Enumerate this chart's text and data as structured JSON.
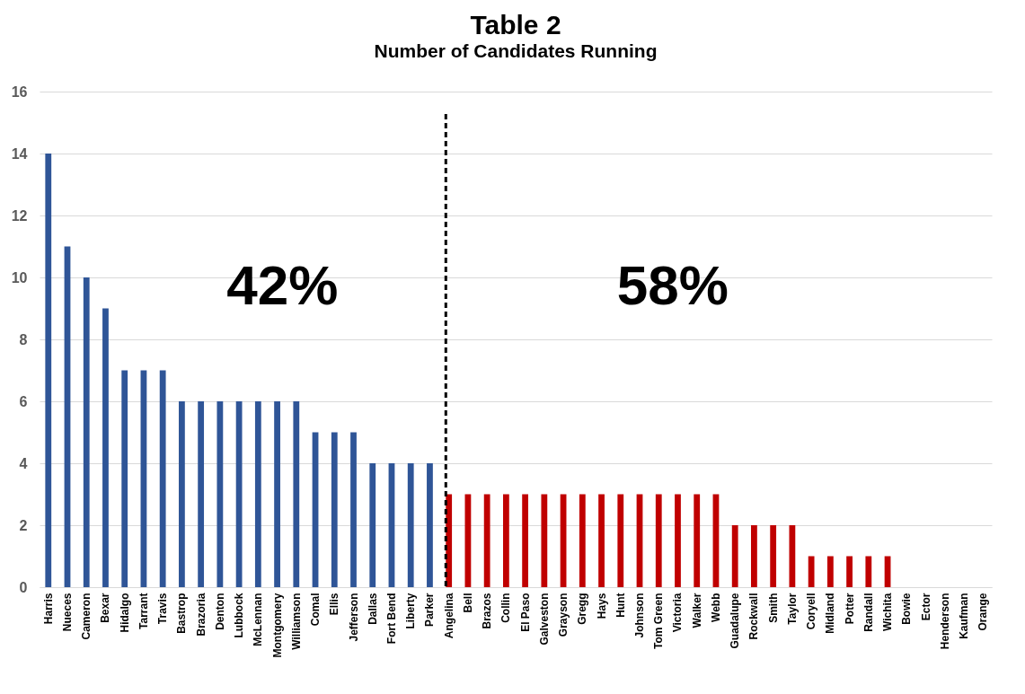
{
  "chart_data": {
    "type": "bar",
    "title": "Table 2",
    "subtitle": "Number of Candidates Running",
    "categories": [
      "Harris",
      "Nueces",
      "Cameron",
      "Bexar",
      "Hidalgo",
      "Tarrant",
      "Travis",
      "Bastrop",
      "Brazoria",
      "Denton",
      "Lubbock",
      "McLennan",
      "Montgomery",
      "Williamson",
      "Comal",
      "Ellis",
      "Jefferson",
      "Dallas",
      "Fort Bend",
      "Liberty",
      "Parker",
      "Angelina",
      "Bell",
      "Brazos",
      "Collin",
      "El Paso",
      "Galveston",
      "Grayson",
      "Gregg",
      "Hays",
      "Hunt",
      "Johnson",
      "Tom Green",
      "Victoria",
      "Walker",
      "Webb",
      "Guadalupe",
      "Rockwall",
      "Smith",
      "Taylor",
      "Coryell",
      "Midland",
      "Potter",
      "Randall",
      "Wichita",
      "Bowie",
      "Ector",
      "Henderson",
      "Kaufman",
      "Orange"
    ],
    "values": [
      14,
      11,
      10,
      9,
      7,
      7,
      7,
      6,
      6,
      6,
      6,
      6,
      6,
      6,
      5,
      5,
      5,
      4,
      4,
      4,
      4,
      3,
      3,
      3,
      3,
      3,
      3,
      3,
      3,
      3,
      3,
      3,
      3,
      3,
      3,
      3,
      2,
      2,
      2,
      2,
      1,
      1,
      1,
      1,
      1,
      0,
      0,
      0,
      0,
      0
    ],
    "colors": [
      "#2f5597",
      "#2f5597",
      "#2f5597",
      "#2f5597",
      "#2f5597",
      "#2f5597",
      "#2f5597",
      "#2f5597",
      "#2f5597",
      "#2f5597",
      "#2f5597",
      "#2f5597",
      "#2f5597",
      "#2f5597",
      "#2f5597",
      "#2f5597",
      "#2f5597",
      "#2f5597",
      "#2f5597",
      "#2f5597",
      "#2f5597",
      "#c00000",
      "#c00000",
      "#c00000",
      "#c00000",
      "#c00000",
      "#c00000",
      "#c00000",
      "#c00000",
      "#c00000",
      "#c00000",
      "#c00000",
      "#c00000",
      "#c00000",
      "#c00000",
      "#c00000",
      "#c00000",
      "#c00000",
      "#c00000",
      "#c00000",
      "#c00000",
      "#c00000",
      "#c00000",
      "#c00000",
      "#c00000",
      "#c00000",
      "#c00000",
      "#c00000",
      "#c00000",
      "#c00000"
    ],
    "ylim": [
      0,
      16
    ],
    "yticks": [
      0,
      2,
      4,
      6,
      8,
      10,
      12,
      14,
      16
    ],
    "grid": "y",
    "ref_lines": [
      {
        "axis": "x",
        "value": "Angelina",
        "color": "#000000",
        "line_style": "dashed"
      }
    ],
    "annotations": [
      "42%",
      "58%"
    ]
  }
}
